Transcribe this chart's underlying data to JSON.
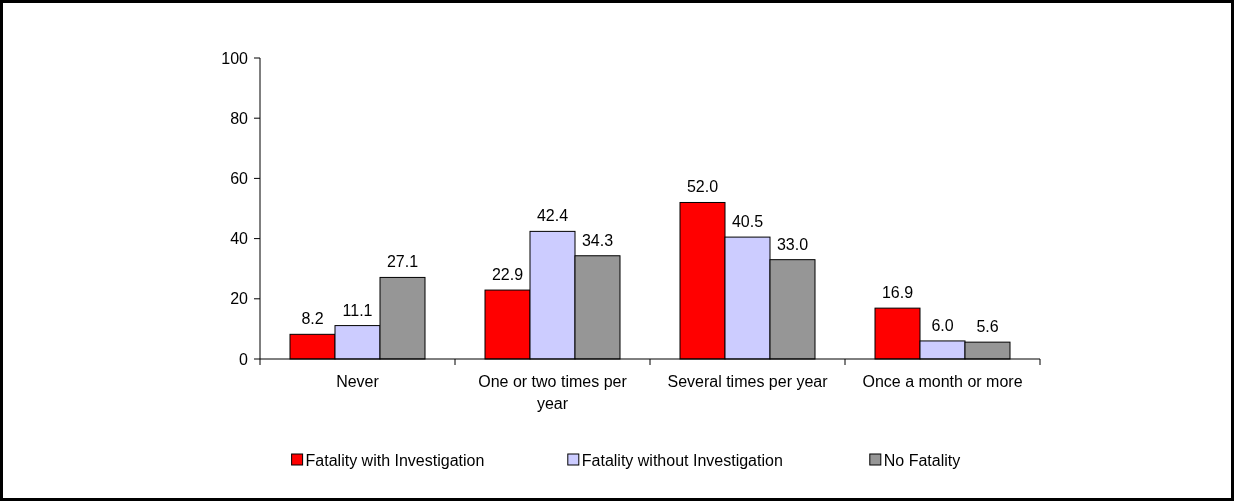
{
  "chart_data": {
    "type": "bar",
    "categories": [
      "Never",
      "One or two times per year",
      "Several times per year",
      "Once a month or more"
    ],
    "series": [
      {
        "name": "Fatality with Investigation",
        "color": "#ff0000",
        "values": [
          8.2,
          22.9,
          52.0,
          16.9
        ],
        "value_labels": [
          "8.2",
          "22.9",
          "52.0",
          "16.9"
        ]
      },
      {
        "name": "Fatality without Investigation",
        "color": "#ccccff",
        "values": [
          11.1,
          42.4,
          40.5,
          6.0
        ],
        "value_labels": [
          "11.1",
          "42.4",
          "40.5",
          "6.0"
        ]
      },
      {
        "name": "No Fatality",
        "color": "#969696",
        "values": [
          27.1,
          34.3,
          33.0,
          5.6
        ],
        "value_labels": [
          "27.1",
          "34.3",
          "33.0",
          "5.6"
        ]
      }
    ],
    "ylim": [
      0,
      100
    ],
    "yticks": [
      0,
      20,
      40,
      60,
      80,
      100
    ],
    "grid": false,
    "legend": "bottom"
  }
}
